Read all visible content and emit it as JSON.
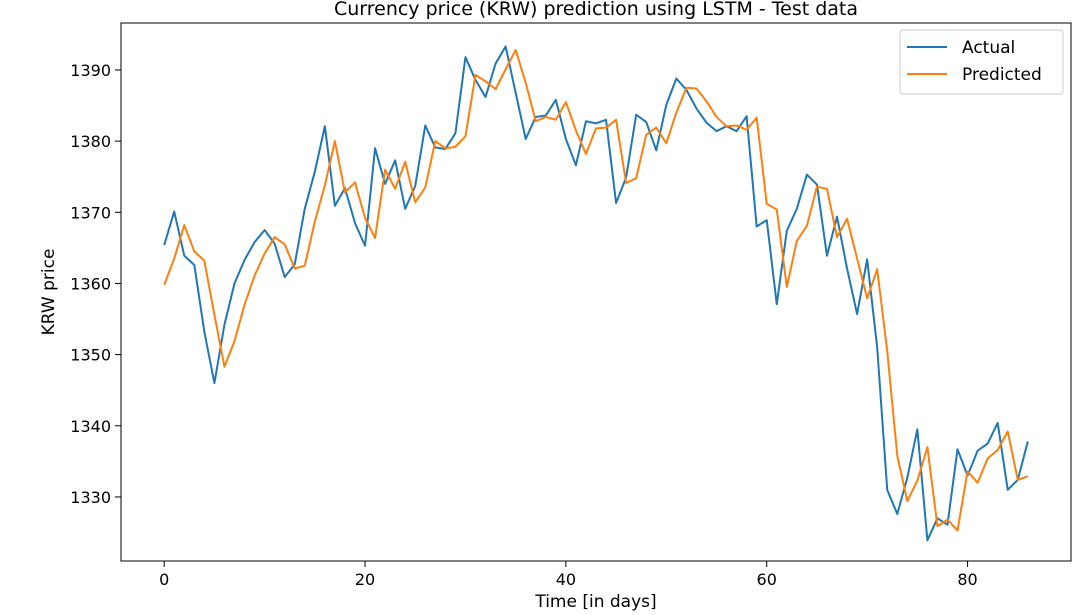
{
  "chart_data": {
    "type": "line",
    "title": "Currency price (KRW) prediction using LSTM - Test data",
    "xlabel": "Time [in days]",
    "ylabel": "KRW price",
    "xlim": [
      -4.3,
      90.3
    ],
    "ylim": [
      1321,
      1396.6
    ],
    "xticks": [
      0,
      20,
      40,
      60,
      80
    ],
    "yticks": [
      1330,
      1340,
      1350,
      1360,
      1370,
      1380,
      1390
    ],
    "grid": false,
    "legend_position": "top-right",
    "series": [
      {
        "name": "Actual",
        "color": "#1f77b4",
        "values": [
          1365.4,
          1370.1,
          1363.9,
          1362.6,
          1353.2,
          1346.0,
          1354.2,
          1360.0,
          1363.3,
          1365.8,
          1367.5,
          1365.6,
          1360.9,
          1362.7,
          1370.5,
          1375.7,
          1382.1,
          1370.9,
          1373.4,
          1368.5,
          1365.3,
          1379.0,
          1374.0,
          1377.3,
          1370.5,
          1373.7,
          1382.2,
          1379.1,
          1378.9,
          1381.1,
          1391.8,
          1388.6,
          1386.2,
          1390.9,
          1393.3,
          1386.8,
          1380.3,
          1383.4,
          1383.6,
          1385.8,
          1380.3,
          1376.6,
          1382.8,
          1382.5,
          1383.0,
          1371.3,
          1374.9,
          1383.7,
          1382.7,
          1378.7,
          1385.1,
          1388.8,
          1387.2,
          1384.6,
          1382.6,
          1381.4,
          1382.1,
          1381.4,
          1383.5,
          1368.0,
          1368.9,
          1357.1,
          1367.4,
          1370.5,
          1375.3,
          1373.9,
          1363.9,
          1369.4,
          1362.1,
          1355.7,
          1363.4,
          1351.0,
          1331.0,
          1327.6,
          1332.7,
          1339.5,
          1323.9,
          1327.0,
          1326.1,
          1336.7,
          1333.0,
          1336.5,
          1337.5,
          1340.4,
          1331.0,
          1332.4,
          1337.8
        ]
      },
      {
        "name": "Predicted",
        "color": "#ff7f0e",
        "values": [
          1359.8,
          1363.5,
          1368.2,
          1364.5,
          1363.2,
          1355.6,
          1348.3,
          1351.9,
          1357.0,
          1361.1,
          1364.2,
          1366.5,
          1365.5,
          1362.1,
          1362.5,
          1368.7,
          1373.8,
          1380.0,
          1372.8,
          1374.2,
          1369.2,
          1366.4,
          1376.0,
          1373.3,
          1377.1,
          1371.4,
          1373.5,
          1380.0,
          1379.0,
          1379.2,
          1380.7,
          1389.3,
          1388.4,
          1387.3,
          1390.1,
          1392.8,
          1388.2,
          1382.8,
          1383.4,
          1383.0,
          1385.5,
          1381.5,
          1378.2,
          1381.8,
          1381.9,
          1383.0,
          1374.1,
          1374.8,
          1380.9,
          1381.9,
          1379.7,
          1384.0,
          1387.5,
          1387.4,
          1385.6,
          1383.4,
          1382.1,
          1382.2,
          1381.6,
          1383.3,
          1371.2,
          1370.4,
          1359.5,
          1366.0,
          1368.1,
          1373.6,
          1373.3,
          1366.5,
          1369.1,
          1363.5,
          1357.9,
          1362.0,
          1350.5,
          1335.8,
          1329.4,
          1332.3,
          1337.0,
          1325.9,
          1326.8,
          1325.3,
          1333.6,
          1332.0,
          1335.4,
          1336.6,
          1339.2,
          1332.4,
          1332.9
        ]
      }
    ]
  }
}
